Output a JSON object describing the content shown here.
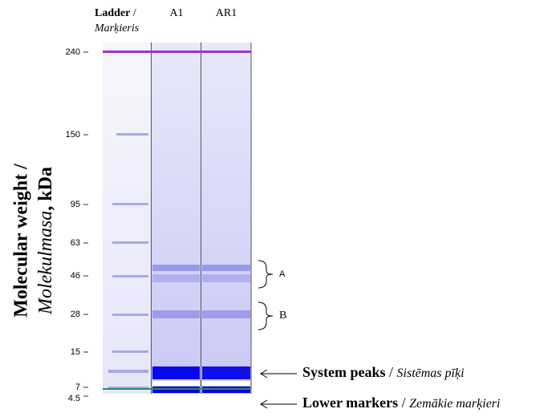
{
  "header": {
    "ladder": "Ladder",
    "ladder_sep": " /",
    "ladder_lv": "Marķieris",
    "lane1": "A1",
    "lane2": "AR1"
  },
  "axis_title": {
    "line1": "Molecular weight /",
    "line2_italic": "Molekulmasa",
    "line2_rest": ", kDa"
  },
  "ticks": [
    "240",
    "150",
    "95",
    "63",
    "46",
    "28",
    "15",
    "7",
    "4.5"
  ],
  "annotations": {
    "a": "A",
    "b": "B",
    "system_peaks": "System peaks",
    "system_peaks_sep": " / ",
    "system_peaks_lv": "Sistēmas pīķi",
    "lower_markers": "Lower markers",
    "lower_markers_sep": " / ",
    "lower_markers_lv": "Zemākie marķieri"
  }
}
